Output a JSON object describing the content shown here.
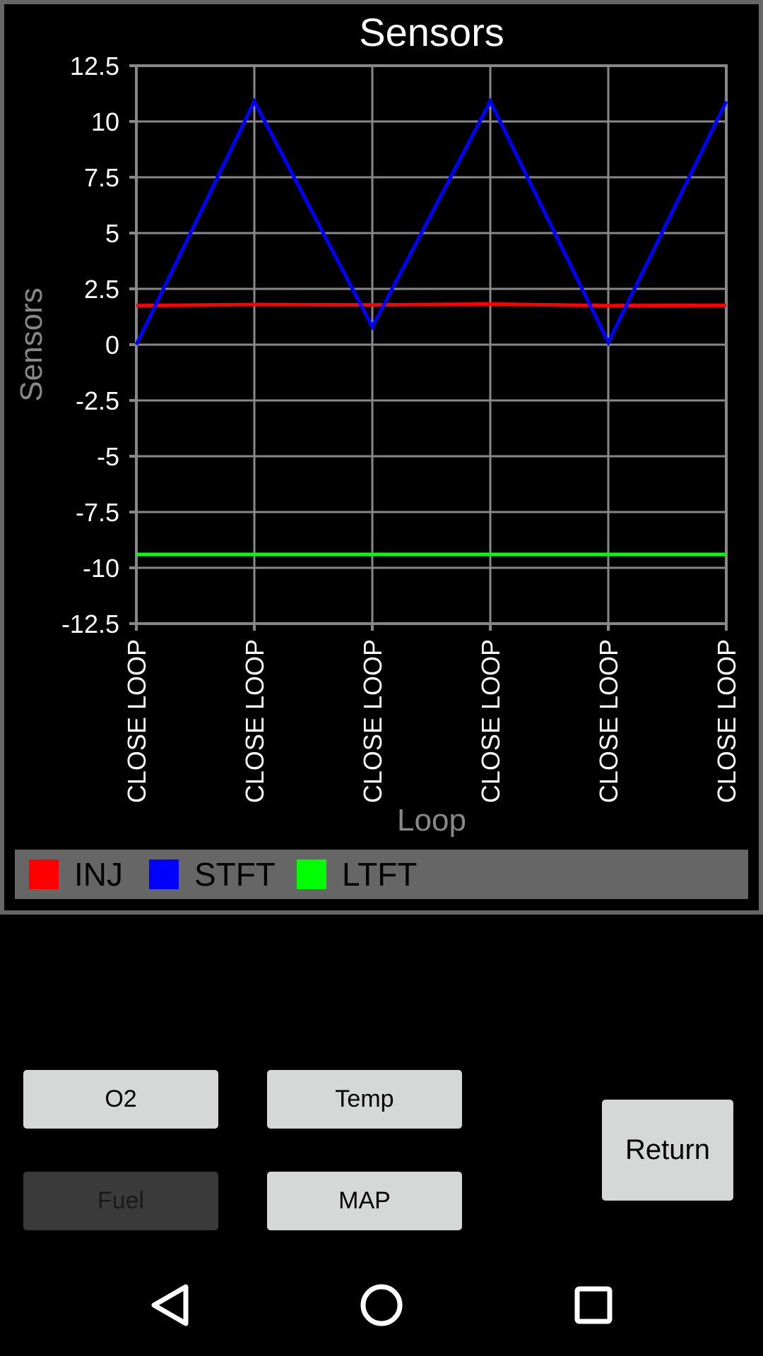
{
  "chart_data": {
    "type": "line",
    "title": "Sensors",
    "xlabel": "Loop",
    "ylabel": "Sensors",
    "categories": [
      "CLOSE LOOP",
      "CLOSE LOOP",
      "CLOSE LOOP",
      "CLOSE LOOP",
      "CLOSE LOOP",
      "CLOSE LOOP"
    ],
    "ylim": [
      -12.5,
      12.5
    ],
    "yticks": [
      "12.5",
      "10",
      "7.5",
      "5",
      "2.5",
      "0",
      "-2.5",
      "-5",
      "-7.5",
      "-10",
      "-12.5"
    ],
    "grid": true,
    "legend_position": "bottom",
    "series": [
      {
        "name": "INJ",
        "color": "#FF0000",
        "values": [
          1.75,
          1.8,
          1.78,
          1.82,
          1.75,
          1.76
        ]
      },
      {
        "name": "STFT",
        "color": "#0000FF",
        "values": [
          0.0,
          10.9,
          0.8,
          10.9,
          0.1,
          10.9
        ]
      },
      {
        "name": "LTFT",
        "color": "#00FF00",
        "values": [
          -9.4,
          -9.4,
          -9.4,
          -9.4,
          -9.4,
          -9.4
        ]
      }
    ]
  },
  "buttons": {
    "o2": "O2",
    "temp": "Temp",
    "fuel": "Fuel",
    "map": "MAP",
    "return": "Return"
  },
  "colors": {
    "background": "#000000",
    "frame": "#666666",
    "grid": "#888888",
    "button": "#D6D7D7",
    "button_disabled": "#3A3A3A"
  },
  "navbar": {
    "back": "back-icon",
    "home": "home-icon",
    "recents": "recents-icon"
  }
}
